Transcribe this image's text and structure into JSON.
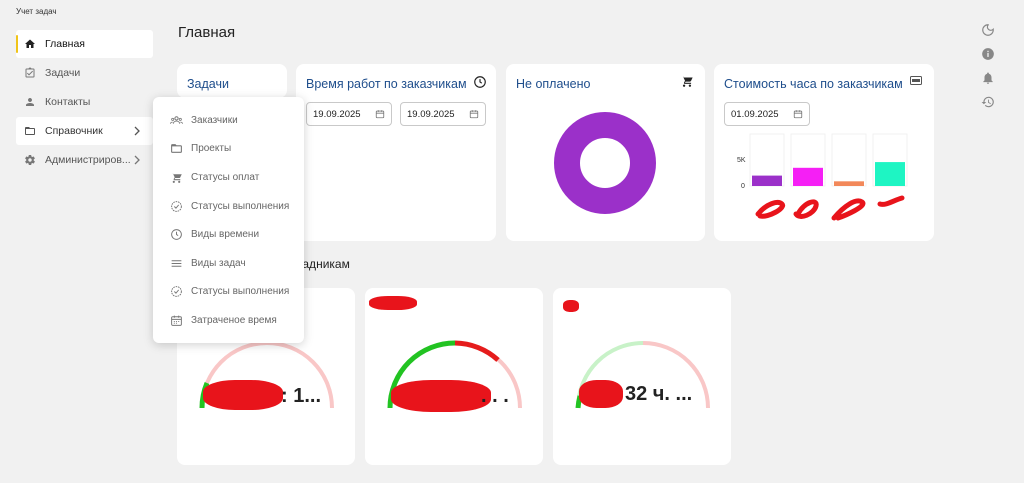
{
  "app": {
    "title": "Учет задач"
  },
  "sidebar": {
    "items": [
      {
        "label": "Главная",
        "icon": "home-icon"
      },
      {
        "label": "Задачи",
        "icon": "task-icon"
      },
      {
        "label": "Контакты",
        "icon": "person-icon"
      },
      {
        "label": "Справочник",
        "icon": "folder-icon"
      },
      {
        "label": "Администриров...",
        "icon": "gear-icon"
      }
    ]
  },
  "header": {
    "title": "Главная"
  },
  "cards": {
    "tasks": {
      "title": "Задачи"
    },
    "work_time": {
      "title": "Время работ по заказчикам",
      "date_from": "19.09.2025",
      "date_to": "19.09.2025"
    },
    "unpaid": {
      "title": "Не оплачено"
    },
    "hourly_cost": {
      "title": "Стоимость часа по заказчикам",
      "date": "01.09.2025"
    }
  },
  "dropdown": {
    "items": [
      {
        "label": "Заказчики",
        "icon": "people-icon"
      },
      {
        "label": "Проекты",
        "icon": "folder-icon"
      },
      {
        "label": "Статусы оплат",
        "icon": "cart-icon"
      },
      {
        "label": "Статусы выполнения",
        "icon": "check-badge-icon"
      },
      {
        "label": "Виды времени",
        "icon": "clock-icon"
      },
      {
        "label": "Виды задач",
        "icon": "lines-icon"
      },
      {
        "label": "Статусы выполнения",
        "icon": "check-badge-icon"
      },
      {
        "label": "Затраченое время",
        "icon": "calendar-icon"
      }
    ]
  },
  "section": {
    "title_partial": "кладникам"
  },
  "gauges": [
    {
      "value_text": ": 1...",
      "fill": 0.08,
      "colors": {
        "on": "#22c322",
        "off": "#f9c7c7"
      }
    },
    {
      "value_text": ". . .",
      "fill": 0.55,
      "colors": {
        "on": "#22c322",
        "red": "#e51c1c",
        "off": "#f9c7c7"
      }
    },
    {
      "value_text": "32 ч. ...",
      "fill": 0.05,
      "colors": {
        "on": "#22c322",
        "light": "#c8f2c8",
        "off": "#f9c7c7"
      }
    }
  ],
  "chart_data": {
    "type": "bar",
    "categories": [
      "",
      "",
      "",
      ""
    ],
    "values": [
      2000,
      3500,
      900,
      4600
    ],
    "colors": [
      "#9b30c9",
      "#f51ff5",
      "#f2885a",
      "#1ef5c3"
    ],
    "yticks": [
      "5K",
      "0"
    ],
    "ylim": [
      0,
      5000
    ]
  },
  "donut": {
    "color": "#9b30c9"
  },
  "colors": {
    "accent": "#f0c419",
    "title_blue": "#1f4e8c"
  }
}
